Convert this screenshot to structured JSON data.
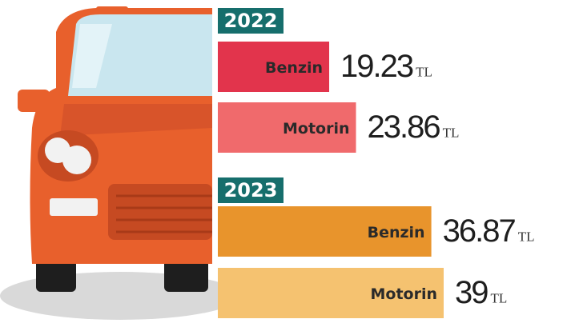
{
  "chart_data": {
    "type": "bar",
    "unit": "TL",
    "groups": [
      {
        "name": "2022",
        "categories": [
          "Benzin",
          "Motorin"
        ],
        "values": [
          19.23,
          23.86
        ],
        "colors": [
          "#e2344c",
          "#f06a6c"
        ]
      },
      {
        "name": "2023",
        "categories": [
          "Benzin",
          "Motorin"
        ],
        "values": [
          36.87,
          39
        ],
        "colors": [
          "#e8942c",
          "#f5c270"
        ]
      }
    ]
  }
}
